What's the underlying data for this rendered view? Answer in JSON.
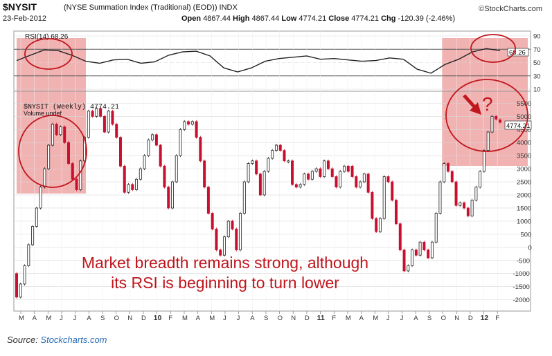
{
  "header": {
    "symbol": "$NYSIT",
    "description": "(NYSE Summation Index (Traditional) (EOD))  INDX",
    "date": "23-Feb-2012",
    "logo": "©StockCharts.com",
    "open_label": "Open",
    "open": "4867.44",
    "high_label": "High",
    "high": "4867.44",
    "low_label": "Low",
    "low": "4774.21",
    "close_label": "Close",
    "close": "4774.21",
    "chg_label": "Chg",
    "chg": "-120.39 (-2.46%)"
  },
  "rsi_panel": {
    "legend": "RSI(14) 68.26",
    "last_value_label": "68.26"
  },
  "price_panel": {
    "legend": "$NYSIT (Weekly) 4774.21",
    "volume_legend": "Volume undef",
    "last_value_label": "4774.21"
  },
  "annotation": {
    "line1": "Market breadth remains strong, although",
    "line2": "its RSI is beginning to turn lower",
    "question_mark": "?"
  },
  "source": {
    "prefix": "Source: ",
    "link": "Stockcharts.com"
  },
  "colors": {
    "up": "#ffffff",
    "down": "#c8102e",
    "highlight": "rgba(226,90,90,0.45)",
    "circle": "#c0161d",
    "grid": "#d8d8d8"
  },
  "chart_data": [
    {
      "type": "line",
      "name": "RSI(14)",
      "ylim": [
        10,
        90
      ],
      "yticks": [
        90,
        70,
        50,
        30,
        10
      ],
      "reference_lines": [
        70,
        30
      ],
      "x": [
        "M",
        "A",
        "M",
        "J",
        "J",
        "A",
        "S",
        "O",
        "N",
        "D",
        "10",
        "F",
        "M",
        "A",
        "M",
        "J",
        "J",
        "A",
        "S",
        "O",
        "N",
        "D",
        "11",
        "F",
        "M",
        "A",
        "M",
        "J",
        "J",
        "A",
        "S",
        "O",
        "N",
        "D",
        "12",
        "F"
      ],
      "values": [
        53,
        61,
        69,
        68,
        61,
        52,
        49,
        54,
        55,
        49,
        51,
        61,
        66,
        67,
        60,
        42,
        36,
        42,
        52,
        56,
        58,
        60,
        55,
        56,
        54,
        52,
        53,
        57,
        55,
        40,
        34,
        47,
        55,
        66,
        71,
        68
      ]
    },
    {
      "type": "candlestick",
      "name": "$NYSIT (Weekly)",
      "ylim": [
        -2300,
        5800
      ],
      "yticks": [
        5500,
        5000,
        4500,
        4000,
        3500,
        3000,
        2500,
        2000,
        1500,
        1000,
        500,
        0,
        -500,
        -1000,
        -1500,
        -2000
      ],
      "x_tick_labels": [
        "M",
        "A",
        "M",
        "J",
        "J",
        "A",
        "S",
        "O",
        "N",
        "D",
        "10",
        "F",
        "M",
        "A",
        "M",
        "J",
        "J",
        "A",
        "S",
        "O",
        "N",
        "D",
        "11",
        "F",
        "M",
        "A",
        "M",
        "J",
        "J",
        "A",
        "S",
        "O",
        "N",
        "D",
        "12",
        "F"
      ],
      "ohlc": [
        [
          -1000,
          -1900
        ],
        [
          -1900,
          -1400
        ],
        [
          -1400,
          -700
        ],
        [
          -700,
          100
        ],
        [
          100,
          800
        ],
        [
          800,
          1500
        ],
        [
          1500,
          2300
        ],
        [
          2300,
          3000
        ],
        [
          3000,
          3900
        ],
        [
          3900,
          4700
        ],
        [
          4700,
          4300
        ],
        [
          4300,
          4600
        ],
        [
          4600,
          4000
        ],
        [
          4000,
          3200
        ],
        [
          3200,
          2600
        ],
        [
          2600,
          2200
        ],
        [
          2200,
          3300
        ],
        [
          3300,
          4200
        ],
        [
          4200,
          5200
        ],
        [
          5200,
          5000
        ],
        [
          5000,
          5300
        ],
        [
          5300,
          5000
        ],
        [
          5000,
          4400
        ],
        [
          4400,
          5200
        ],
        [
          5200,
          4700
        ],
        [
          4700,
          4200
        ],
        [
          4200,
          3100
        ],
        [
          3100,
          2100
        ],
        [
          2100,
          2400
        ],
        [
          2400,
          2200
        ],
        [
          2200,
          2600
        ],
        [
          2600,
          3000
        ],
        [
          3000,
          3500
        ],
        [
          3500,
          4100
        ],
        [
          4100,
          4300
        ],
        [
          4300,
          3900
        ],
        [
          3900,
          3100
        ],
        [
          3100,
          2300
        ],
        [
          2300,
          1500
        ],
        [
          1500,
          2500
        ],
        [
          2500,
          3500
        ],
        [
          3500,
          4500
        ],
        [
          4500,
          4800
        ],
        [
          4800,
          4700
        ],
        [
          4700,
          4800
        ],
        [
          4800,
          4200
        ],
        [
          4200,
          3300
        ],
        [
          3300,
          2300
        ],
        [
          2300,
          1300
        ],
        [
          1300,
          700
        ],
        [
          700,
          -100
        ],
        [
          -100,
          -300
        ],
        [
          -300,
          400
        ],
        [
          400,
          1000
        ],
        [
          1000,
          700
        ],
        [
          700,
          -100
        ],
        [
          -100,
          1300
        ],
        [
          1300,
          2500
        ],
        [
          2500,
          3200
        ],
        [
          3200,
          3300
        ],
        [
          3300,
          2800
        ],
        [
          2800,
          2000
        ],
        [
          2000,
          2900
        ],
        [
          2900,
          3400
        ],
        [
          3400,
          3700
        ],
        [
          3700,
          3900
        ],
        [
          3900,
          3700
        ],
        [
          3700,
          3300
        ],
        [
          3300,
          3300
        ],
        [
          3300,
          2400
        ],
        [
          2400,
          2300
        ],
        [
          2300,
          2400
        ],
        [
          2400,
          2800
        ],
        [
          2800,
          2600
        ],
        [
          2600,
          2900
        ],
        [
          2900,
          3000
        ],
        [
          3000,
          2700
        ],
        [
          2700,
          3300
        ],
        [
          3300,
          3000
        ],
        [
          3000,
          2700
        ],
        [
          2700,
          2300
        ],
        [
          2300,
          2900
        ],
        [
          2900,
          3100
        ],
        [
          3100,
          2900
        ],
        [
          3100,
          2700
        ],
        [
          2700,
          2300
        ],
        [
          2300,
          2500
        ],
        [
          2500,
          2800
        ],
        [
          2800,
          2100
        ],
        [
          2100,
          1100
        ],
        [
          1100,
          600
        ],
        [
          600,
          1100
        ],
        [
          1100,
          2700
        ],
        [
          2700,
          2500
        ],
        [
          2500,
          1800
        ],
        [
          1800,
          900
        ],
        [
          900,
          -100
        ],
        [
          -100,
          -900
        ],
        [
          -900,
          -700
        ],
        [
          -700,
          -100
        ],
        [
          -100,
          -300
        ],
        [
          -300,
          200
        ],
        [
          200,
          -100
        ],
        [
          -100,
          -400
        ],
        [
          -400,
          200
        ],
        [
          200,
          1300
        ],
        [
          1300,
          2500
        ],
        [
          2500,
          3200
        ],
        [
          3200,
          2900
        ],
        [
          2900,
          2500
        ],
        [
          2500,
          1600
        ],
        [
          1600,
          1700
        ],
        [
          1700,
          1500
        ],
        [
          1500,
          1200
        ],
        [
          1200,
          1800
        ],
        [
          1800,
          2300
        ],
        [
          2300,
          2900
        ],
        [
          2900,
          3700
        ],
        [
          3700,
          4400
        ],
        [
          4400,
          5000
        ],
        [
          5000,
          4895
        ],
        [
          4867,
          4774
        ]
      ],
      "last_value": 4774.21
    }
  ]
}
